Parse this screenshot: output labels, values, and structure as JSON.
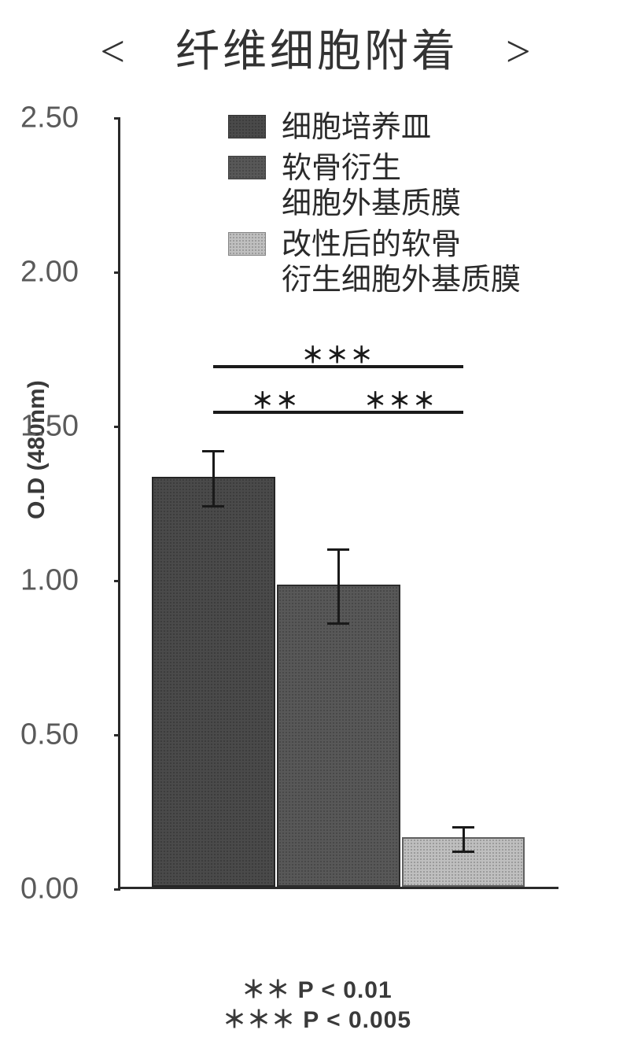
{
  "title": "<　纤维细胞附着　>",
  "chart": {
    "type": "bar",
    "ylabel": "O.D (480nm)",
    "ylabel_fontsize": 30,
    "ylim": [
      0.0,
      2.5
    ],
    "ytick_step": 0.5,
    "yticks": [
      {
        "value": 0.0,
        "label": "0.00"
      },
      {
        "value": 0.5,
        "label": "0.50"
      },
      {
        "value": 1.0,
        "label": "1.00"
      },
      {
        "value": 1.5,
        "label": "1.50"
      },
      {
        "value": 2.0,
        "label": "2.00"
      },
      {
        "value": 2.5,
        "label": "2.50"
      }
    ],
    "tick_label_fontsize": 38,
    "bar_width": 0.28,
    "bars": [
      {
        "key": "dish",
        "value": 1.33,
        "err": 0.09,
        "color": "#4a4a4a"
      },
      {
        "key": "ecm",
        "value": 0.98,
        "err": 0.12,
        "color": "#585858"
      },
      {
        "key": "mod_ecm",
        "value": 0.16,
        "err": 0.04,
        "color": "#bfbfbf"
      }
    ],
    "legend": [
      {
        "key": "dish",
        "label": "细胞培养皿"
      },
      {
        "key": "ecm",
        "label_line1": "软骨衍生",
        "label_line2": "细胞外基质膜"
      },
      {
        "key": "mod_ecm",
        "label_line1": "改性后的软骨",
        "label_line2": "衍生细胞外基质膜"
      }
    ],
    "legend_fontsize": 38,
    "significance": [
      {
        "from": "dish",
        "to": "mod_ecm",
        "level_y": 1.7,
        "label": "＊＊＊"
      },
      {
        "from": "dish",
        "to": "ecm",
        "level_y": 1.55,
        "label": "＊＊"
      },
      {
        "from": "ecm",
        "to": "mod_ecm",
        "level_y": 1.55,
        "label": "＊＊＊"
      }
    ],
    "axis_color": "#2a2a2a",
    "background_color": "#ffffff"
  },
  "footnote": {
    "line1": "＊＊ P < 0.01",
    "line2": "＊＊＊ P < 0.005",
    "fontsize": 30
  }
}
